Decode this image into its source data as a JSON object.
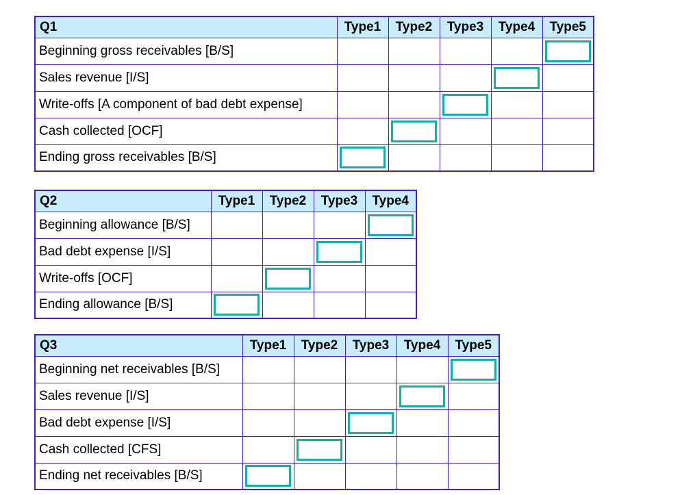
{
  "colors": {
    "table_border": "#421dc9",
    "header_bg": "#c8ecfc",
    "input_border": "#0fb2a7",
    "text": "#000000"
  },
  "input_default": {
    "value": "",
    "placeholder": ""
  },
  "tables": [
    {
      "title": "Q1",
      "columns": [
        "Type1",
        "Type2",
        "Type3",
        "Type4",
        "Type5"
      ],
      "rows": [
        {
          "label": "Beginning gross receivables [B/S]",
          "input_column": "Type5"
        },
        {
          "label": "Sales revenue [I/S]",
          "input_column": "Type4"
        },
        {
          "label": "Write-offs [A component of bad debt expense]",
          "input_column": "Type3"
        },
        {
          "label": "Cash collected [OCF]",
          "input_column": "Type2"
        },
        {
          "label": "Ending gross receivables [B/S]",
          "input_column": "Type1"
        }
      ]
    },
    {
      "title": "Q2",
      "columns": [
        "Type1",
        "Type2",
        "Type3",
        "Type4"
      ],
      "rows": [
        {
          "label": "Beginning allowance [B/S]",
          "input_column": "Type4"
        },
        {
          "label": "Bad debt expense [I/S]",
          "input_column": "Type3"
        },
        {
          "label": "Write-offs [OCF]",
          "input_column": "Type2"
        },
        {
          "label": "Ending allowance [B/S]",
          "input_column": "Type1"
        }
      ]
    },
    {
      "title": "Q3",
      "columns": [
        "Type1",
        "Type2",
        "Type3",
        "Type4",
        "Type5"
      ],
      "rows": [
        {
          "label": "Beginning net receivables [B/S]",
          "input_column": "Type5"
        },
        {
          "label": "Sales revenue [I/S]",
          "input_column": "Type4"
        },
        {
          "label": "Bad debt expense [I/S]",
          "input_column": "Type3"
        },
        {
          "label": "Cash collected [CFS]",
          "input_column": "Type2"
        },
        {
          "label": "Ending net receivables [B/S]",
          "input_column": "Type1"
        }
      ]
    }
  ]
}
